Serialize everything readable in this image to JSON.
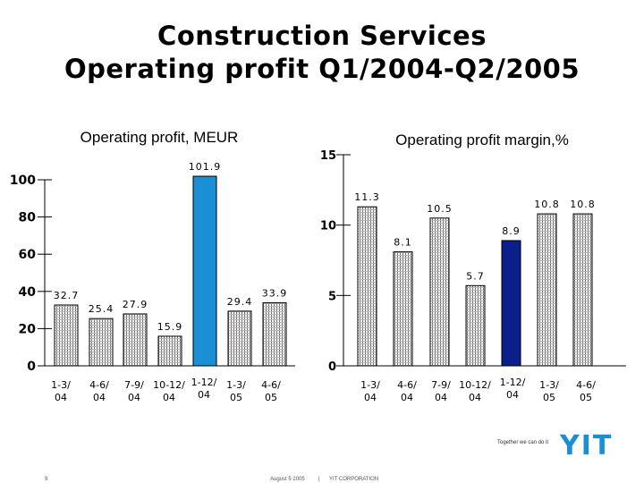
{
  "slide": {
    "title_line1": "Construction Services",
    "title_line2": "Operating profit Q1/2004-Q2/2005",
    "slogan": "Together we can do it",
    "logo": "YIT",
    "page_number": "9",
    "footer_date": "August 5 2005",
    "footer_separator": "|",
    "footer_company": "YIT CORPORATION"
  },
  "colors": {
    "hatch_bar": "#7a7a7a",
    "highlight_left": "#1a8fd6",
    "highlight_right": "#0a1f8a",
    "logo": "#1a8fd6"
  },
  "chart_data": [
    {
      "type": "bar",
      "title": "Operating profit, MEUR",
      "xlabel": "",
      "ylabel": "",
      "ylim": [
        0,
        100
      ],
      "yticks": [
        0,
        20,
        40,
        60,
        80,
        100
      ],
      "categories": [
        [
          "1-3/",
          "04"
        ],
        [
          "4-6/",
          "04"
        ],
        [
          "7-9/",
          "04"
        ],
        [
          "10-12/",
          "04"
        ],
        [
          "1-12/",
          "04"
        ],
        [
          "1-3/",
          "05"
        ],
        [
          "4-6/",
          "05"
        ]
      ],
      "values": [
        32.7,
        25.4,
        27.9,
        15.9,
        101.9,
        29.4,
        33.9
      ],
      "labels": [
        "32.7",
        "25.4",
        "27.9",
        "15.9",
        "101.9",
        "29.4",
        "33.9"
      ],
      "highlight_index": 4
    },
    {
      "type": "bar",
      "title": "Operating profit margin,%",
      "xlabel": "",
      "ylabel": "",
      "ylim": [
        0,
        15
      ],
      "yticks": [
        0,
        5,
        10,
        15
      ],
      "categories": [
        [
          "1-3/",
          "04"
        ],
        [
          "4-6/",
          "04"
        ],
        [
          "7-9/",
          "04"
        ],
        [
          "10-12/",
          "04"
        ],
        [
          "1-12/",
          "04"
        ],
        [
          "1-3/",
          "05"
        ],
        [
          "4-6/",
          "05"
        ]
      ],
      "values": [
        11.3,
        8.1,
        10.5,
        5.7,
        8.9,
        10.8,
        10.8
      ],
      "labels": [
        "11.3",
        "8.1",
        "10.5",
        "5.7",
        "8.9",
        "10.8",
        "10.8"
      ],
      "highlight_index": 4
    }
  ]
}
